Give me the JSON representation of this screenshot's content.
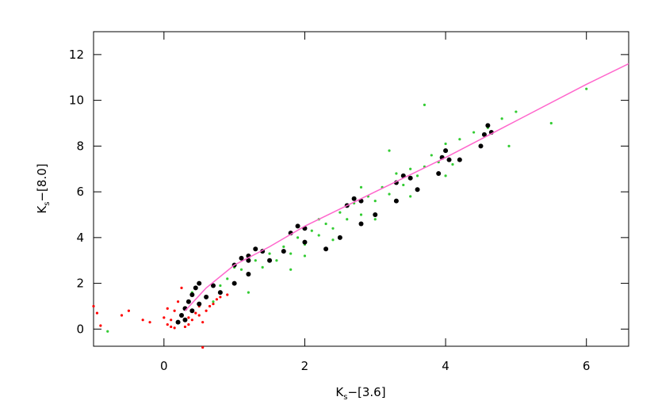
{
  "chart_data": {
    "type": "scatter",
    "x_label": {
      "main": "K",
      "sub": "s",
      "rest": "−[3.6]"
    },
    "y_label": {
      "main": "K",
      "sub": "s",
      "rest": "−[8.0]"
    },
    "xlim": [
      -1,
      6.6
    ],
    "ylim": [
      -0.75,
      13
    ],
    "xticks": [
      0,
      2,
      4,
      6
    ],
    "yticks": [
      0,
      2,
      4,
      6,
      8,
      10,
      12
    ],
    "series": [
      {
        "color": "#ff0000",
        "size": 1.6,
        "x": [
          -1.0,
          -0.95,
          -0.9,
          -0.6,
          -0.5,
          -0.3,
          -0.2,
          0.0,
          0.05,
          0.1,
          0.1,
          0.15,
          0.2,
          0.2,
          0.25,
          0.3,
          0.3,
          0.35,
          0.4,
          0.45,
          0.5,
          0.5,
          0.55,
          0.6,
          0.65,
          0.7,
          0.75,
          0.8,
          0.55,
          0.15,
          0.05,
          0.4,
          0.25,
          0.35,
          0.9
        ],
        "y": [
          1.0,
          0.7,
          0.15,
          0.6,
          0.8,
          0.4,
          0.3,
          0.5,
          0.2,
          0.1,
          0.4,
          0.8,
          0.3,
          1.2,
          0.6,
          0.1,
          0.9,
          0.5,
          0.4,
          0.7,
          0.6,
          1.0,
          -0.8,
          0.8,
          1.0,
          1.1,
          1.3,
          1.4,
          0.3,
          0.05,
          0.9,
          1.5,
          1.8,
          0.2,
          1.5
        ]
      },
      {
        "color": "#33cc33",
        "size": 1.6,
        "x": [
          0.6,
          0.8,
          0.9,
          1.0,
          1.1,
          1.2,
          1.3,
          1.4,
          1.5,
          1.6,
          1.7,
          1.8,
          1.9,
          2.0,
          2.1,
          2.2,
          2.3,
          2.4,
          2.5,
          2.6,
          2.7,
          2.8,
          2.9,
          3.0,
          3.1,
          3.2,
          3.3,
          3.4,
          3.5,
          3.6,
          3.7,
          3.8,
          3.9,
          4.0,
          4.2,
          4.4,
          4.6,
          4.8,
          5.0,
          5.5,
          6.0,
          1.0,
          1.5,
          2.0,
          2.5,
          3.0,
          3.5,
          4.0,
          2.2,
          2.8,
          3.2,
          1.2,
          1.8,
          2.4,
          4.1,
          4.9,
          -0.8,
          0.4,
          0.7,
          3.7
        ],
        "y": [
          1.4,
          1.9,
          2.2,
          2.0,
          2.6,
          2.4,
          3.0,
          2.7,
          3.3,
          3.0,
          3.6,
          3.3,
          4.0,
          3.7,
          4.3,
          4.1,
          4.6,
          4.4,
          5.1,
          4.8,
          5.5,
          5.0,
          5.8,
          5.6,
          6.2,
          5.9,
          6.8,
          6.3,
          7.0,
          6.7,
          7.1,
          7.6,
          7.3,
          8.1,
          8.3,
          8.6,
          8.8,
          9.2,
          9.5,
          9.0,
          10.5,
          2.7,
          3.0,
          3.2,
          4.0,
          4.8,
          5.8,
          6.7,
          4.8,
          6.2,
          7.8,
          1.6,
          2.6,
          3.9,
          7.2,
          8.0,
          -0.1,
          1.6,
          1.2,
          9.8
        ]
      },
      {
        "color": "#000000",
        "size": 3,
        "x": [
          0.2,
          0.25,
          0.3,
          0.35,
          0.4,
          0.45,
          0.5,
          0.3,
          0.4,
          0.5,
          0.6,
          0.7,
          1.2,
          1.3,
          1.4,
          1.0,
          1.1,
          1.2,
          1.8,
          1.9,
          2.0,
          2.6,
          2.7,
          2.8,
          3.3,
          3.4,
          3.5,
          3.95,
          4.0,
          4.05,
          4.55,
          4.6,
          4.65,
          0.8,
          1.0,
          1.2,
          1.5,
          1.7,
          2.0,
          2.3,
          2.5,
          2.8,
          3.0,
          3.3,
          3.6,
          3.9,
          4.2,
          4.5
        ],
        "y": [
          0.3,
          0.6,
          0.9,
          1.2,
          1.5,
          1.8,
          2.0,
          0.4,
          0.8,
          1.1,
          1.4,
          1.9,
          3.2,
          3.5,
          3.4,
          2.8,
          3.1,
          3.0,
          4.2,
          4.5,
          4.4,
          5.4,
          5.7,
          5.6,
          6.4,
          6.7,
          6.6,
          7.5,
          7.8,
          7.4,
          8.5,
          8.9,
          8.6,
          1.6,
          2.0,
          2.4,
          3.0,
          3.4,
          3.8,
          3.5,
          4.0,
          4.6,
          5.0,
          5.6,
          6.1,
          6.8,
          7.4,
          8.0
        ]
      }
    ],
    "line": {
      "color": "#ff66cc",
      "x": [
        0.3,
        0.6,
        1.0,
        1.5,
        2.0,
        3.0,
        4.0,
        5.0,
        6.0,
        6.6
      ],
      "y": [
        0.8,
        1.8,
        2.8,
        3.6,
        4.5,
        6.0,
        7.5,
        9.1,
        10.7,
        11.6
      ]
    }
  }
}
